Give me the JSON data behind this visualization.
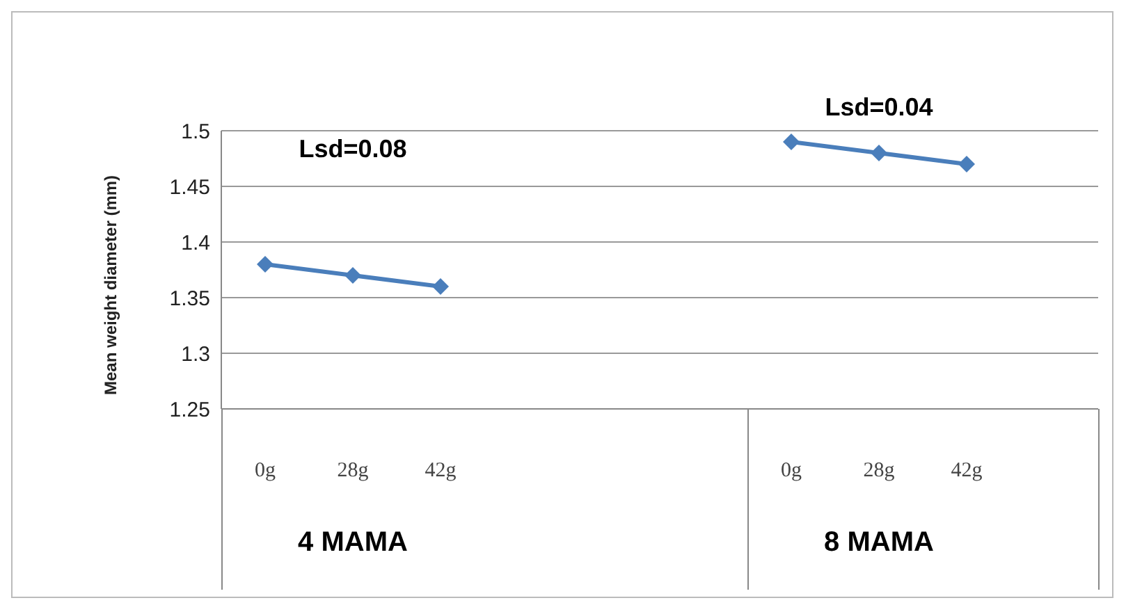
{
  "chart_data": {
    "type": "line",
    "ylabel": "Mean weight diameter (mm)",
    "categories": [
      "0g",
      "28g",
      "42g",
      null,
      null,
      null,
      "0g",
      "28g",
      "42g",
      null
    ],
    "series": [
      {
        "color": "#4a7ebb",
        "values": [
          1.38,
          1.37,
          1.36,
          null,
          null,
          null,
          1.49,
          1.48,
          1.47,
          null
        ]
      }
    ],
    "ylim": [
      1.25,
      1.5
    ],
    "yticks": [
      1.25,
      1.3,
      1.35,
      1.4,
      1.45,
      1.5
    ],
    "grid": "y",
    "marker": "diamond",
    "line_style": "solid",
    "annotations": [
      "Lsd=0.08",
      "Lsd=0.04",
      "4 MAMA",
      "8 MAMA"
    ]
  }
}
